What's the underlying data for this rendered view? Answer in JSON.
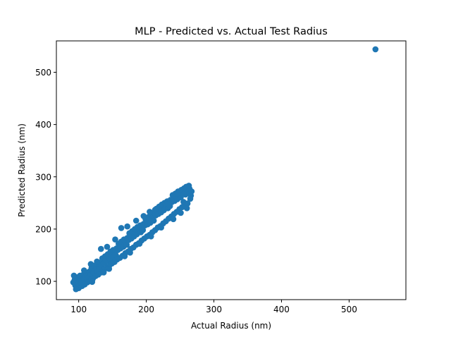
{
  "chart_data": {
    "type": "scatter",
    "title": "MLP - Predicted vs. Actual Test Radius",
    "xlabel": "Actual Radius (nm)",
    "ylabel": "Predicted Radius (nm)",
    "xlim": [
      67,
      584
    ],
    "ylim": [
      65,
      560
    ],
    "xticks": [
      100,
      200,
      300,
      400,
      500
    ],
    "yticks": [
      100,
      200,
      300,
      400,
      500
    ],
    "grid": false,
    "marker_color": "#1f77b4",
    "series": [
      {
        "points": [
          [
            92,
            98
          ],
          [
            94,
            103
          ],
          [
            96,
            108
          ],
          [
            95,
            92
          ],
          [
            97,
            88
          ],
          [
            99,
            94
          ],
          [
            101,
            101
          ],
          [
            103,
            106
          ],
          [
            102,
            111
          ],
          [
            104,
            97
          ],
          [
            106,
            100
          ],
          [
            108,
            104
          ],
          [
            107,
            113
          ],
          [
            110,
            109
          ],
          [
            112,
            105
          ],
          [
            111,
            116
          ],
          [
            114,
            112
          ],
          [
            116,
            119
          ],
          [
            115,
            108
          ],
          [
            118,
            114
          ],
          [
            120,
            121
          ],
          [
            119,
            126
          ],
          [
            122,
            117
          ],
          [
            124,
            123
          ],
          [
            123,
            130
          ],
          [
            126,
            127
          ],
          [
            128,
            120
          ],
          [
            127,
            133
          ],
          [
            130,
            129
          ],
          [
            132,
            136
          ],
          [
            131,
            124
          ],
          [
            134,
            131
          ],
          [
            136,
            138
          ],
          [
            135,
            144
          ],
          [
            138,
            135
          ],
          [
            140,
            141
          ],
          [
            139,
            148
          ],
          [
            142,
            139
          ],
          [
            144,
            146
          ],
          [
            143,
            152
          ],
          [
            146,
            143
          ],
          [
            148,
            150
          ],
          [
            147,
            157
          ],
          [
            150,
            153
          ],
          [
            152,
            146
          ],
          [
            151,
            160
          ],
          [
            154,
            156
          ],
          [
            156,
            163
          ],
          [
            155,
            150
          ],
          [
            158,
            160
          ],
          [
            160,
            166
          ],
          [
            159,
            172
          ],
          [
            162,
            163
          ],
          [
            164,
            170
          ],
          [
            163,
            176
          ],
          [
            166,
            166
          ],
          [
            168,
            173
          ],
          [
            167,
            180
          ],
          [
            170,
            176
          ],
          [
            172,
            183
          ],
          [
            171,
            170
          ],
          [
            174,
            179
          ],
          [
            176,
            186
          ],
          [
            175,
            192
          ],
          [
            178,
            182
          ],
          [
            180,
            189
          ],
          [
            179,
            196
          ],
          [
            182,
            186
          ],
          [
            184,
            193
          ],
          [
            183,
            200
          ],
          [
            186,
            190
          ],
          [
            188,
            197
          ],
          [
            187,
            204
          ],
          [
            190,
            200
          ],
          [
            192,
            194
          ],
          [
            191,
            207
          ],
          [
            194,
            203
          ],
          [
            196,
            210
          ],
          [
            195,
            198
          ],
          [
            198,
            207
          ],
          [
            200,
            213
          ],
          [
            199,
            219
          ],
          [
            202,
            209
          ],
          [
            204,
            216
          ],
          [
            203,
            223
          ],
          [
            206,
            212
          ],
          [
            208,
            220
          ],
          [
            207,
            227
          ],
          [
            210,
            223
          ],
          [
            212,
            230
          ],
          [
            211,
            216
          ],
          [
            214,
            226
          ],
          [
            216,
            233
          ],
          [
            215,
            239
          ],
          [
            218,
            229
          ],
          [
            220,
            236
          ],
          [
            219,
            243
          ],
          [
            222,
            232
          ],
          [
            224,
            240
          ],
          [
            223,
            247
          ],
          [
            226,
            236
          ],
          [
            228,
            243
          ],
          [
            227,
            250
          ],
          [
            230,
            246
          ],
          [
            232,
            240
          ],
          [
            231,
            253
          ],
          [
            234,
            249
          ],
          [
            236,
            256
          ],
          [
            235,
            244
          ],
          [
            238,
            252
          ],
          [
            240,
            259
          ],
          [
            239,
            265
          ],
          [
            242,
            254
          ],
          [
            244,
            262
          ],
          [
            243,
            268
          ],
          [
            246,
            257
          ],
          [
            248,
            265
          ],
          [
            247,
            272
          ],
          [
            250,
            268
          ],
          [
            252,
            275
          ],
          [
            251,
            261
          ],
          [
            254,
            271
          ],
          [
            256,
            278
          ],
          [
            255,
            252
          ],
          [
            258,
            266
          ],
          [
            260,
            274
          ],
          [
            259,
            281
          ],
          [
            262,
            270
          ],
          [
            264,
            277
          ],
          [
            263,
            283
          ],
          [
            266,
            264
          ],
          [
            265,
            258
          ],
          [
            267,
            272
          ],
          [
            261,
            249
          ],
          [
            257,
            245
          ],
          [
            253,
            242
          ],
          [
            249,
            238
          ],
          [
            245,
            233
          ],
          [
            241,
            229
          ],
          [
            237,
            224
          ],
          [
            233,
            220
          ],
          [
            229,
            215
          ],
          [
            225,
            211
          ],
          [
            221,
            206
          ],
          [
            217,
            203
          ],
          [
            213,
            198
          ],
          [
            209,
            194
          ],
          [
            205,
            189
          ],
          [
            201,
            186
          ],
          [
            197,
            182
          ],
          [
            193,
            178
          ],
          [
            189,
            173
          ],
          [
            185,
            170
          ],
          [
            181,
            165
          ],
          [
            177,
            162
          ],
          [
            173,
            157
          ],
          [
            169,
            154
          ],
          [
            165,
            149
          ],
          [
            161,
            145
          ],
          [
            157,
            142
          ],
          [
            153,
            137
          ],
          [
            149,
            134
          ],
          [
            145,
            129
          ],
          [
            141,
            125
          ],
          [
            137,
            122
          ],
          [
            133,
            117
          ],
          [
            129,
            113
          ],
          [
            125,
            110
          ],
          [
            121,
            105
          ],
          [
            117,
            101
          ],
          [
            113,
            98
          ],
          [
            109,
            94
          ],
          [
            105,
            91
          ],
          [
            100,
            87
          ],
          [
            96,
            85
          ],
          [
            163,
            202
          ],
          [
            172,
            205
          ],
          [
            185,
            216
          ],
          [
            133,
            162
          ],
          [
            142,
            166
          ],
          [
            118,
            133
          ],
          [
            127,
            138
          ],
          [
            205,
            233
          ],
          [
            213,
            237
          ],
          [
            246,
            268
          ],
          [
            255,
            267
          ],
          [
            233,
            248
          ],
          [
            154,
            180
          ],
          [
            196,
            225
          ],
          [
            108,
            121
          ],
          [
            93,
            111
          ],
          [
            145,
            124
          ],
          [
            168,
            148
          ],
          [
            190,
            172
          ],
          [
            222,
            203
          ],
          [
            251,
            231
          ],
          [
            137,
            117
          ],
          [
            120,
            99
          ],
          [
            176,
            155
          ],
          [
            207,
            186
          ],
          [
            240,
            219
          ],
          [
            260,
            240
          ],
          [
            539,
            544
          ]
        ]
      }
    ]
  }
}
